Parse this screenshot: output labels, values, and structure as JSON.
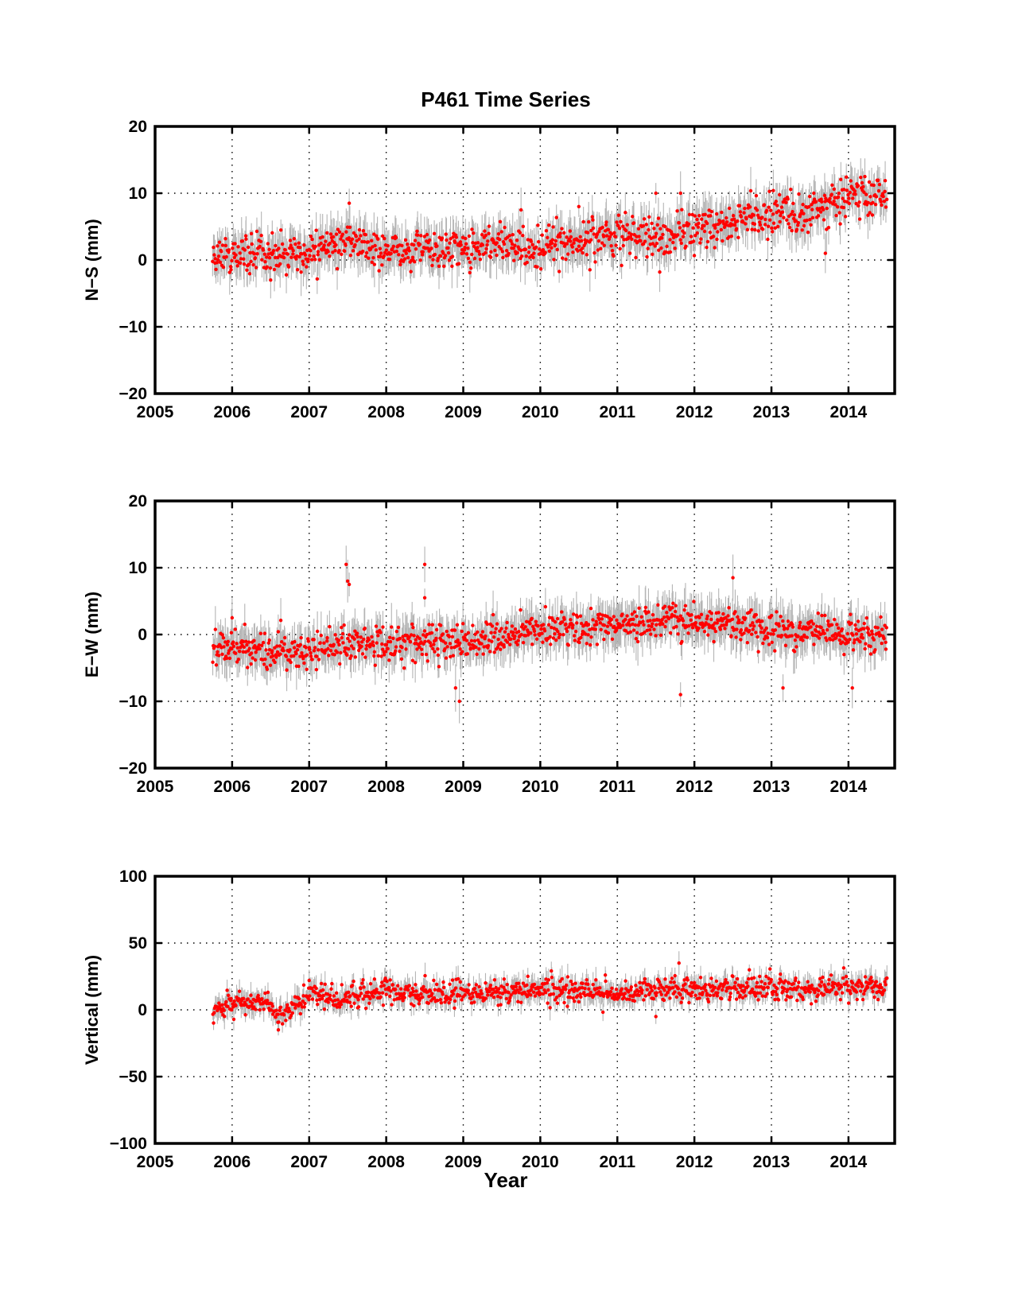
{
  "chart_data": [
    {
      "type": "scatter",
      "title": "P461 Time Series",
      "xlabel": "",
      "ylabel": "N−S (mm)",
      "xlim": [
        2005,
        2014.6
      ],
      "ylim": [
        -20,
        20
      ],
      "xticks": [
        "2005",
        "2006",
        "2007",
        "2008",
        "2009",
        "2010",
        "2011",
        "2012",
        "2013",
        "2014"
      ],
      "yticks": [
        "20",
        "10",
        "0",
        "−10",
        "−20"
      ],
      "grid": true,
      "marker_color": "#ff0000",
      "error_bar_color": "#b4b4b4",
      "series": [
        {
          "x_range": [
            2005.75,
            2014.5
          ],
          "trend": [
            [
              2005.75,
              0.5
            ],
            [
              2006.5,
              1.0
            ],
            [
              2007.0,
              1.0
            ],
            [
              2007.5,
              3.0
            ],
            [
              2008.0,
              1.5
            ],
            [
              2008.5,
              1.5
            ],
            [
              2009.0,
              2.0
            ],
            [
              2009.5,
              2.0
            ],
            [
              2010.0,
              2.0
            ],
            [
              2010.5,
              2.5
            ],
            [
              2011.0,
              3.5
            ],
            [
              2011.5,
              3.5
            ],
            [
              2012.0,
              4.5
            ],
            [
              2012.5,
              5.5
            ],
            [
              2013.0,
              6.5
            ],
            [
              2013.5,
              7.5
            ],
            [
              2014.0,
              9.5
            ],
            [
              2014.5,
              10.0
            ]
          ],
          "scatter": 1.5,
          "error": 2.5,
          "outliers": [
            [
              2007.52,
              8.5
            ],
            [
              2009.75,
              7.5
            ],
            [
              2010.5,
              8.0
            ],
            [
              2011.5,
              10.0
            ],
            [
              2011.55,
              -1.8
            ],
            [
              2011.82,
              10.0
            ],
            [
              2013.55,
              10.0
            ],
            [
              2013.7,
              1.0
            ],
            [
              2006.5,
              -3.0
            ]
          ]
        }
      ]
    },
    {
      "type": "scatter",
      "title": "",
      "xlabel": "",
      "ylabel": "E−W (mm)",
      "xlim": [
        2005,
        2014.6
      ],
      "ylim": [
        -20,
        20
      ],
      "xticks": [
        "2005",
        "2006",
        "2007",
        "2008",
        "2009",
        "2010",
        "2011",
        "2012",
        "2013",
        "2014"
      ],
      "yticks": [
        "20",
        "10",
        "0",
        "−10",
        "−20"
      ],
      "grid": true,
      "marker_color": "#ff0000",
      "error_bar_color": "#b4b4b4",
      "series": [
        {
          "x_range": [
            2005.75,
            2014.5
          ],
          "trend": [
            [
              2005.75,
              -2.0
            ],
            [
              2006.5,
              -2.5
            ],
            [
              2007.0,
              -2.5
            ],
            [
              2007.5,
              -1.0
            ],
            [
              2008.0,
              -1.5
            ],
            [
              2008.5,
              -1.5
            ],
            [
              2009.0,
              -1.0
            ],
            [
              2009.5,
              -0.5
            ],
            [
              2010.0,
              0.5
            ],
            [
              2010.5,
              1.0
            ],
            [
              2011.0,
              1.5
            ],
            [
              2011.5,
              2.0
            ],
            [
              2012.0,
              2.0
            ],
            [
              2012.5,
              1.5
            ],
            [
              2013.0,
              0.5
            ],
            [
              2013.5,
              0.5
            ],
            [
              2014.0,
              0.0
            ],
            [
              2014.5,
              0.0
            ]
          ],
          "scatter": 1.3,
          "error": 2.5,
          "outliers": [
            [
              2007.5,
              8.0
            ],
            [
              2007.52,
              7.5
            ],
            [
              2007.48,
              10.5
            ],
            [
              2008.5,
              10.5
            ],
            [
              2008.5,
              5.5
            ],
            [
              2008.95,
              -10.0
            ],
            [
              2008.9,
              -8.0
            ],
            [
              2011.82,
              -9.0
            ],
            [
              2012.5,
              8.5
            ],
            [
              2013.15,
              -8.0
            ],
            [
              2014.05,
              -8.0
            ],
            [
              2006.0,
              2.5
            ]
          ]
        }
      ]
    },
    {
      "type": "scatter",
      "title": "",
      "xlabel": "Year",
      "ylabel": "Vertical (mm)",
      "xlim": [
        2005,
        2014.6
      ],
      "ylim": [
        -100,
        100
      ],
      "xticks": [
        "2005",
        "2006",
        "2007",
        "2008",
        "2009",
        "2010",
        "2011",
        "2012",
        "2013",
        "2014"
      ],
      "yticks": [
        "100",
        "50",
        "0",
        "−50",
        "−100"
      ],
      "grid": true,
      "marker_color": "#ff0000",
      "error_bar_color": "#b4b4b4",
      "series": [
        {
          "x_range": [
            2005.75,
            2014.5
          ],
          "trend": [
            [
              2005.75,
              0.0
            ],
            [
              2006.0,
              5.0
            ],
            [
              2006.5,
              5.0
            ],
            [
              2006.6,
              -5.0
            ],
            [
              2007.0,
              12.0
            ],
            [
              2007.5,
              8.0
            ],
            [
              2008.0,
              15.0
            ],
            [
              2008.5,
              12.0
            ],
            [
              2009.0,
              13.0
            ],
            [
              2009.5,
              12.0
            ],
            [
              2010.0,
              14.0
            ],
            [
              2010.5,
              15.0
            ],
            [
              2011.0,
              12.0
            ],
            [
              2011.5,
              14.0
            ],
            [
              2012.0,
              15.0
            ],
            [
              2012.5,
              16.0
            ],
            [
              2013.0,
              17.0
            ],
            [
              2013.5,
              15.0
            ],
            [
              2014.0,
              17.0
            ],
            [
              2014.5,
              16.0
            ]
          ],
          "scatter": 4.5,
          "error": 7.0,
          "outliers": [
            [
              2006.6,
              -15.0
            ],
            [
              2011.8,
              35.0
            ],
            [
              2011.5,
              -5.0
            ],
            [
              2007.0,
              22.0
            ],
            [
              2008.0,
              22.0
            ]
          ]
        }
      ]
    }
  ]
}
